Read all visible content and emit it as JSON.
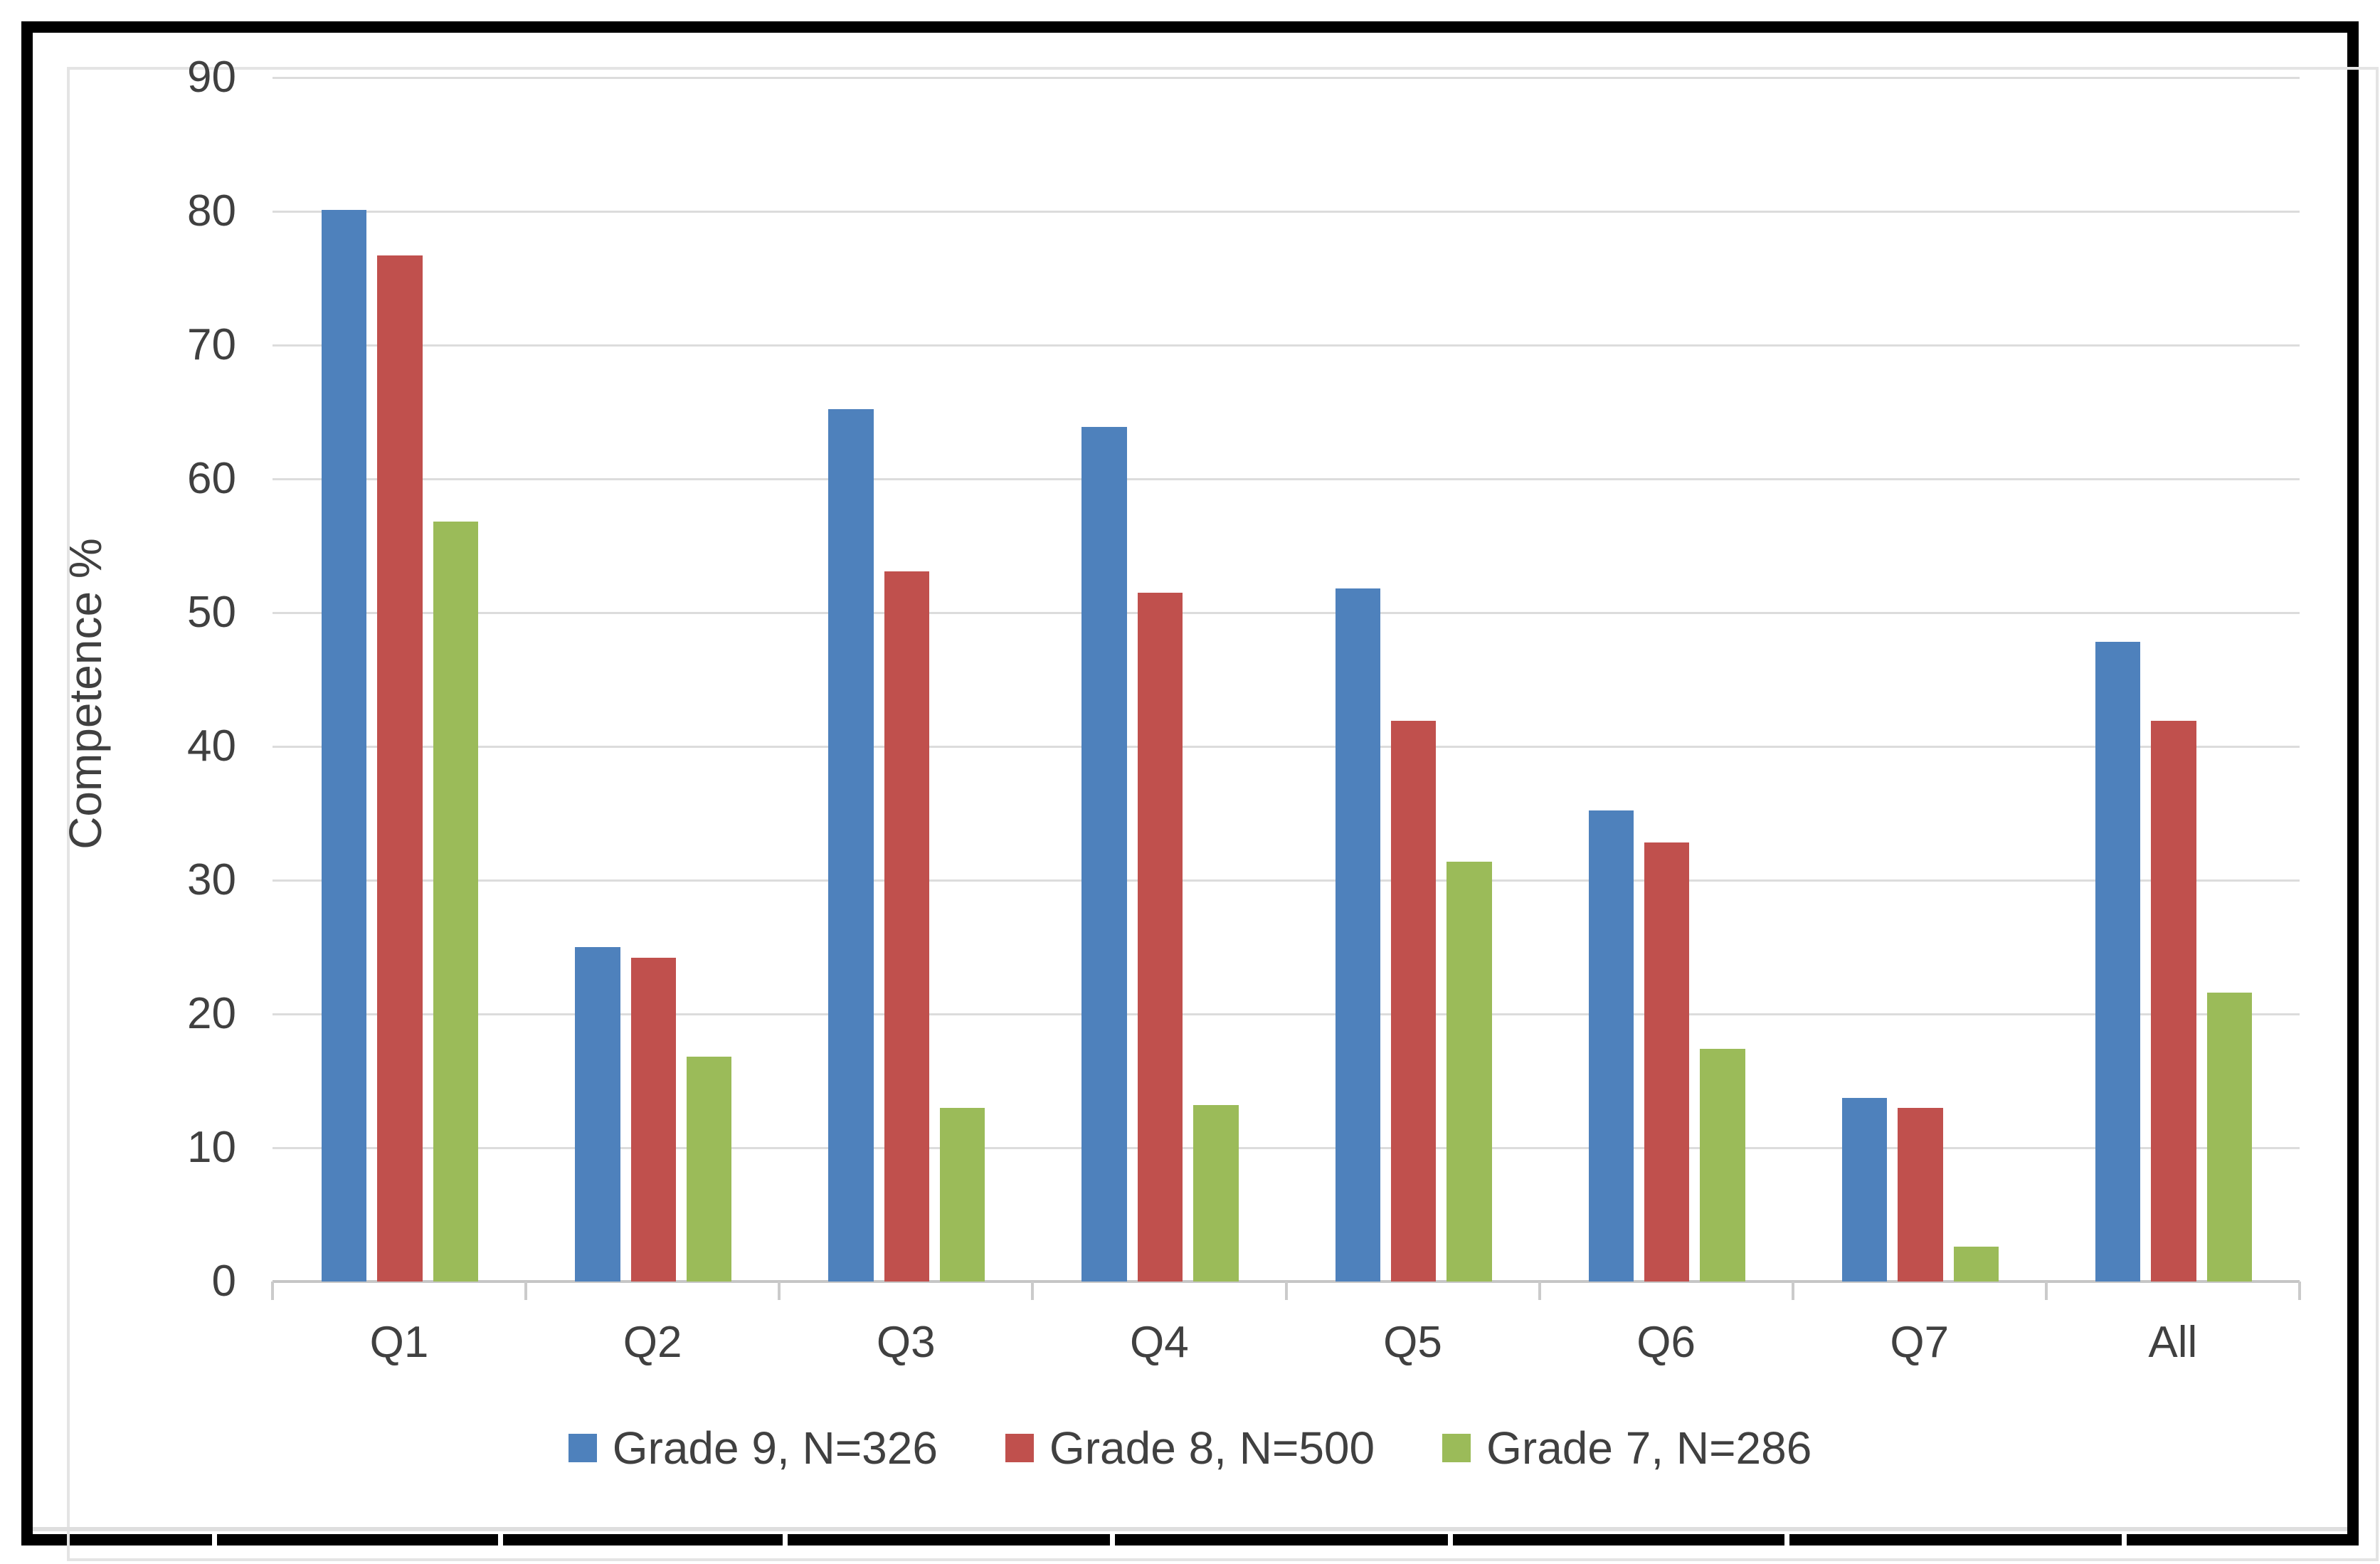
{
  "chart_data": {
    "type": "bar",
    "title": "",
    "ylabel": "Competence %",
    "xlabel": "",
    "categories": [
      "Q1",
      "Q2",
      "Q3",
      "Q4",
      "Q5",
      "Q6",
      "Q7",
      "All"
    ],
    "series": [
      {
        "name": "Grade 9, N=326",
        "color": "#4E81BC",
        "values": [
          80.1,
          25.0,
          65.2,
          63.9,
          51.8,
          35.2,
          13.7,
          47.8
        ]
      },
      {
        "name": "Grade 8, N=500",
        "color": "#C0504D",
        "values": [
          76.7,
          24.2,
          53.1,
          51.5,
          41.9,
          32.8,
          13.0,
          41.9
        ]
      },
      {
        "name": "Grade 7, N=286",
        "color": "#9BBB59",
        "values": [
          56.8,
          16.8,
          13.0,
          13.2,
          31.4,
          17.4,
          2.6,
          21.6
        ]
      }
    ],
    "ylim": [
      0,
      90
    ],
    "ytick_step": 10,
    "grid": true,
    "legend_position": "bottom"
  },
  "styles": {
    "grid_color": "#DCDCDC",
    "axis_color": "#C6C6C6",
    "tick_color": "#CBCBCB",
    "text_color": "#404040",
    "frame_color": "#000000",
    "chart_frame_color": "#E4E4E4"
  }
}
